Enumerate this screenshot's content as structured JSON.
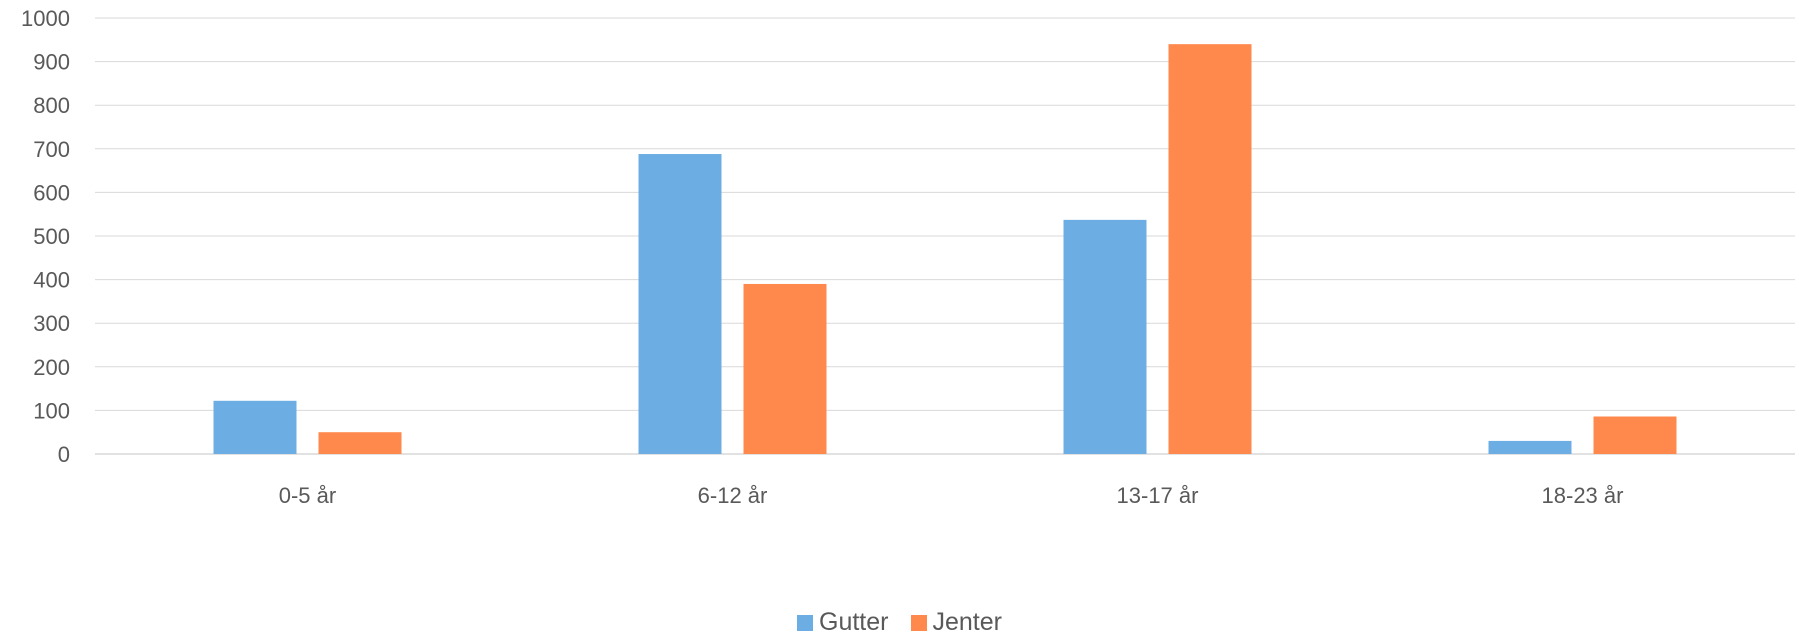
{
  "chart_data": {
    "type": "bar",
    "categories": [
      "0-5 år",
      "6-12 år",
      "13-17 år",
      "18-23 år"
    ],
    "series": [
      {
        "name": "Gutter",
        "color": "#6CADE3",
        "values": [
          122,
          688,
          537,
          30
        ]
      },
      {
        "name": "Jenter",
        "color": "#FF884D",
        "values": [
          50,
          390,
          940,
          86
        ]
      }
    ],
    "ylim": [
      0,
      1000
    ],
    "yticks": [
      0,
      100,
      200,
      300,
      400,
      500,
      600,
      700,
      800,
      900,
      1000
    ],
    "grid": true,
    "gridColor": "#D9D9D9",
    "legend": "bottom"
  }
}
